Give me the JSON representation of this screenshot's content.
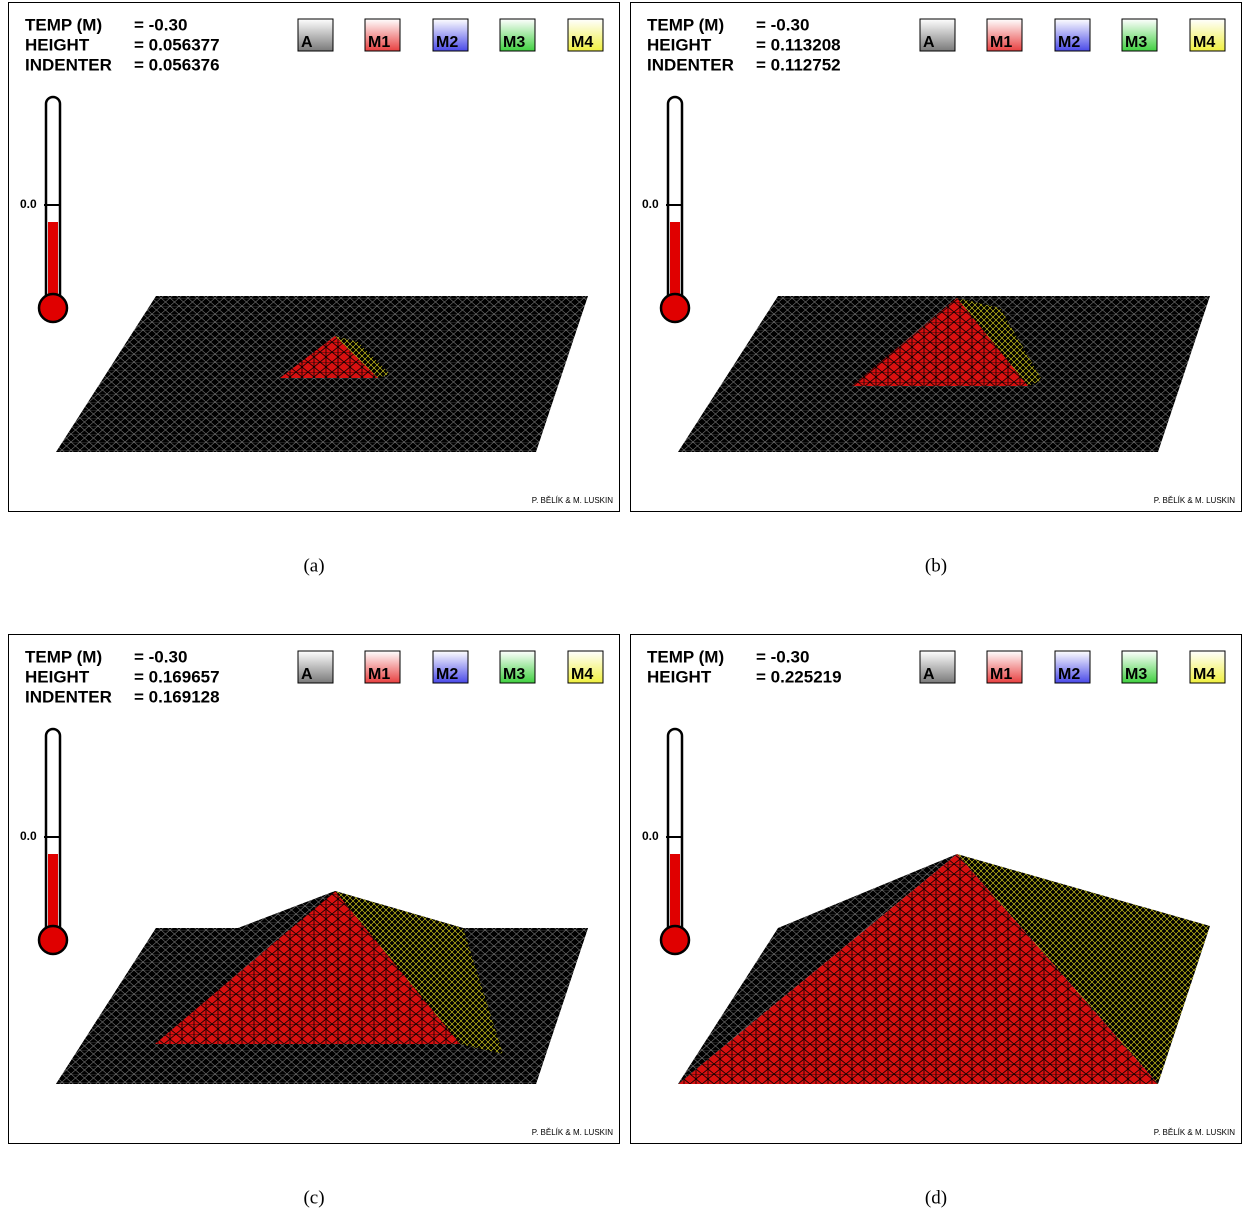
{
  "panels": [
    {
      "caption": "(a)",
      "info": [
        {
          "label": "TEMP (M)",
          "value": "= -0.30"
        },
        {
          "label": "HEIGHT",
          "value": "= 0.056377"
        },
        {
          "label": "INDENTER",
          "value": "= 0.056376"
        }
      ],
      "legend": [
        {
          "label": "A",
          "color": "#7a7a7a"
        },
        {
          "label": "M1",
          "color": "#e84040"
        },
        {
          "label": "M2",
          "color": "#4a4ae8"
        },
        {
          "label": "M3",
          "color": "#40d040"
        },
        {
          "label": "M4",
          "color": "#f0f040"
        }
      ],
      "thermometer_label": "0.0",
      "credit": "P. BĚLÍK & M. LUSKIN"
    },
    {
      "caption": "(b)",
      "info": [
        {
          "label": "TEMP (M)",
          "value": "= -0.30"
        },
        {
          "label": "HEIGHT",
          "value": "= 0.113208"
        },
        {
          "label": "INDENTER",
          "value": "= 0.112752"
        }
      ],
      "legend": [
        {
          "label": "A",
          "color": "#7a7a7a"
        },
        {
          "label": "M1",
          "color": "#e84040"
        },
        {
          "label": "M2",
          "color": "#4a4ae8"
        },
        {
          "label": "M3",
          "color": "#40d040"
        },
        {
          "label": "M4",
          "color": "#f0f040"
        }
      ],
      "thermometer_label": "0.0",
      "credit": "P. BĚLÍK & M. LUSKIN"
    },
    {
      "caption": "(c)",
      "info": [
        {
          "label": "TEMP (M)",
          "value": "= -0.30"
        },
        {
          "label": "HEIGHT",
          "value": "= 0.169657"
        },
        {
          "label": "INDENTER",
          "value": "= 0.169128"
        }
      ],
      "legend": [
        {
          "label": "A",
          "color": "#7a7a7a"
        },
        {
          "label": "M1",
          "color": "#e84040"
        },
        {
          "label": "M2",
          "color": "#4a4ae8"
        },
        {
          "label": "M3",
          "color": "#40d040"
        },
        {
          "label": "M4",
          "color": "#f0f040"
        }
      ],
      "thermometer_label": "0.0",
      "credit": "P. BĚLÍK & M. LUSKIN"
    },
    {
      "caption": "(d)",
      "info": [
        {
          "label": "TEMP (M)",
          "value": "= -0.30"
        },
        {
          "label": "HEIGHT",
          "value": "= 0.225219"
        }
      ],
      "legend": [
        {
          "label": "A",
          "color": "#7a7a7a"
        },
        {
          "label": "M1",
          "color": "#e84040"
        },
        {
          "label": "M2",
          "color": "#4a4ae8"
        },
        {
          "label": "M3",
          "color": "#40d040"
        },
        {
          "label": "M4",
          "color": "#f0f040"
        }
      ],
      "thermometer_label": "0.0",
      "credit": "P. BĚLÍK & M. LUSKIN"
    }
  ]
}
